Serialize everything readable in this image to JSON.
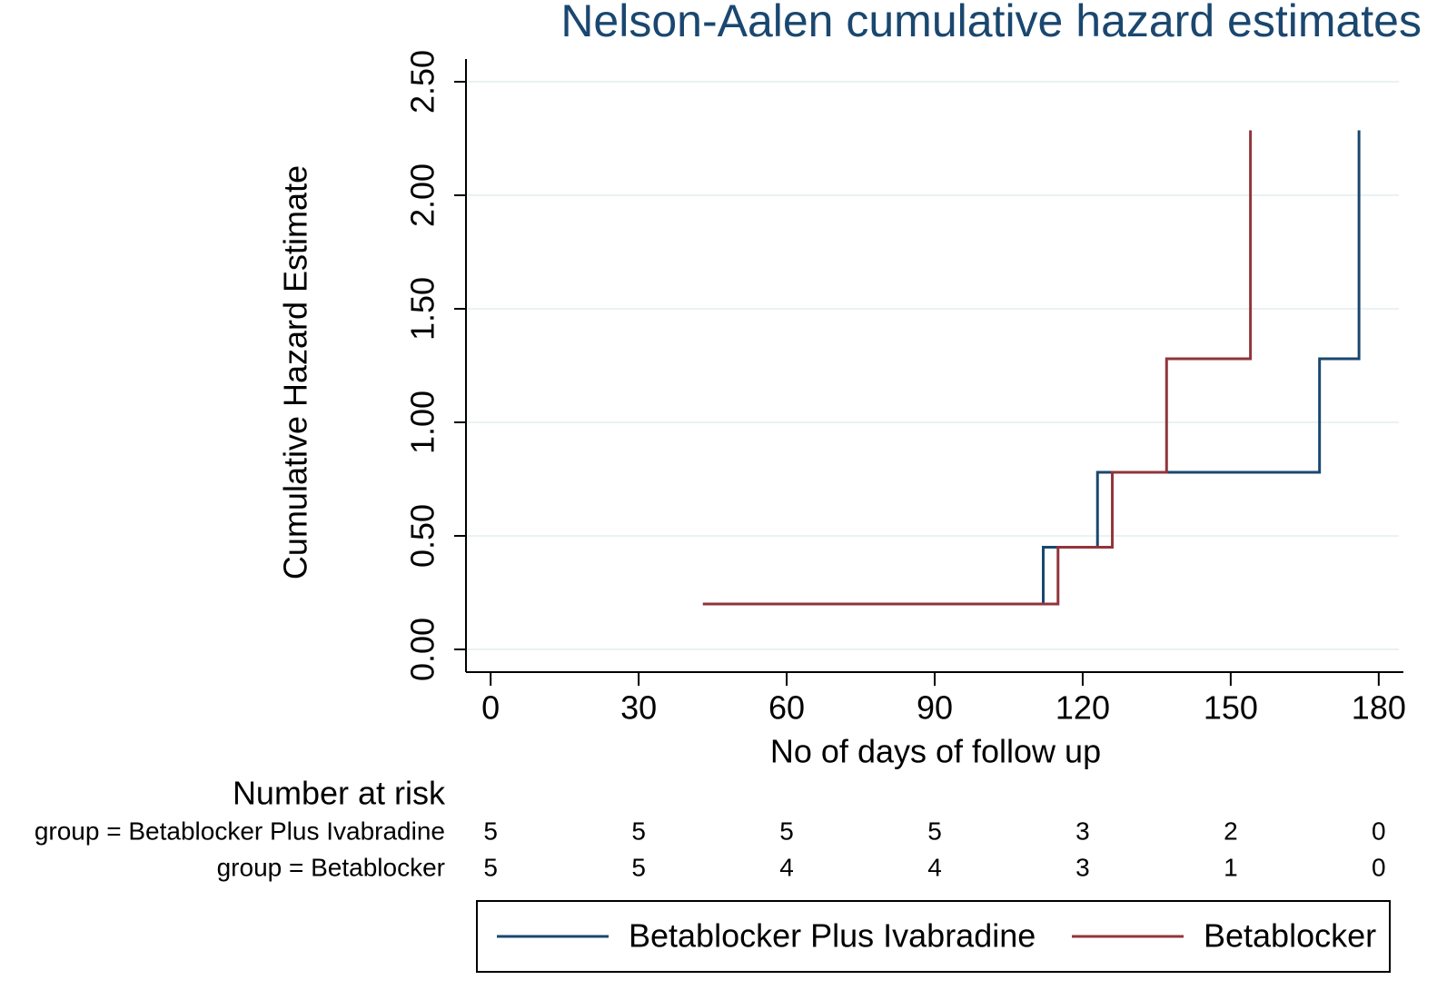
{
  "chart_data": {
    "type": "step",
    "title": "Nelson-Aalen cumulative hazard estimates",
    "x_label": "No of days of follow up",
    "y_label": "Cumulative Hazard Estimate",
    "xlim": [
      -5,
      185
    ],
    "xticks": [
      0,
      30,
      60,
      90,
      120,
      150,
      180
    ],
    "ylim": [
      -0.1,
      2.6
    ],
    "yticks": [
      {
        "value": 0,
        "label": "0.00"
      },
      {
        "value": 0.5,
        "label": "0.50"
      },
      {
        "value": 1,
        "label": "1.00"
      },
      {
        "value": 1.5,
        "label": "1.50"
      },
      {
        "value": 2,
        "label": "2.00"
      },
      {
        "value": 2.5,
        "label": "2.50"
      }
    ],
    "grid": true,
    "legend": "bottom",
    "series": [
      {
        "name": "Betablocker Plus Ivabradine",
        "color": "#1a476f",
        "x": [
          90,
          112,
          123,
          168,
          176
        ],
        "values": [
          0.2,
          0.45,
          0.78,
          1.28,
          2.28
        ]
      },
      {
        "name": "Betablocker",
        "color": "#90353b",
        "x": [
          43,
          115,
          126,
          137,
          154
        ],
        "values": [
          0.2,
          0.45,
          0.78,
          1.28,
          2.28
        ]
      }
    ],
    "risk_table": {
      "title": "Number at risk",
      "rows": [
        {
          "label": "group = Betablocker Plus Ivabradine",
          "values": [
            5,
            5,
            5,
            5,
            3,
            2,
            0
          ]
        },
        {
          "label": "group = Betablocker",
          "values": [
            5,
            5,
            4,
            4,
            3,
            1,
            0
          ]
        }
      ]
    }
  }
}
